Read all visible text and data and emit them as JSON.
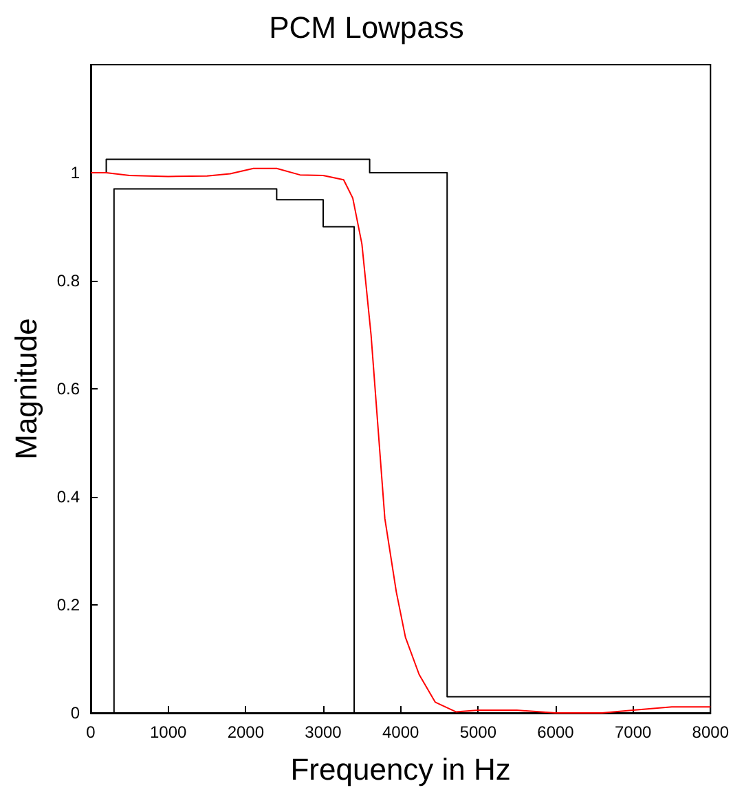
{
  "chart_data": {
    "type": "line",
    "title": "PCM Lowpass",
    "xlabel": "Frequency in Hz",
    "ylabel": "Magnitude",
    "xlim": [
      0,
      8000
    ],
    "xticks": [
      0,
      1000,
      2000,
      3000,
      4000,
      5000,
      6000,
      7000,
      8000
    ],
    "ylim": [
      0,
      1.2
    ],
    "yticks": [
      0,
      0.2,
      0.4,
      0.6,
      0.8,
      1
    ],
    "grid": false,
    "marker": "none",
    "line_style": "solid",
    "series": [
      {
        "color": "#000000",
        "x": [
          0,
          200,
          200,
          3600,
          3600,
          4600,
          4600,
          8000
        ],
        "values": [
          1,
          1,
          1.025,
          1.025,
          1,
          1,
          0.03,
          0.03
        ]
      },
      {
        "color": "#000000",
        "x": [
          300,
          300,
          2400,
          2400,
          3000,
          3000,
          3400,
          3400
        ],
        "values": [
          0,
          0.97,
          0.97,
          0.95,
          0.95,
          0.9,
          0.9,
          0
        ]
      },
      {
        "color": "#ff0000",
        "x": [
          0,
          200,
          500,
          1000,
          1500,
          1800,
          2100,
          2400,
          2700,
          3000,
          3264,
          3382,
          3500,
          3618,
          3707,
          3796,
          3944,
          4062,
          4239,
          4446,
          4713,
          5000,
          5500,
          6000,
          6600,
          7000,
          7500,
          8000
        ],
        "values": [
          1,
          1,
          0.995,
          0.993,
          0.994,
          0.998,
          1.008,
          1.008,
          0.996,
          0.995,
          0.987,
          0.953,
          0.868,
          0.7,
          0.53,
          0.36,
          0.224,
          0.14,
          0.071,
          0.02,
          0.002,
          0.005,
          0.005,
          0,
          0,
          0.005,
          0.011,
          0.011
        ]
      }
    ]
  }
}
